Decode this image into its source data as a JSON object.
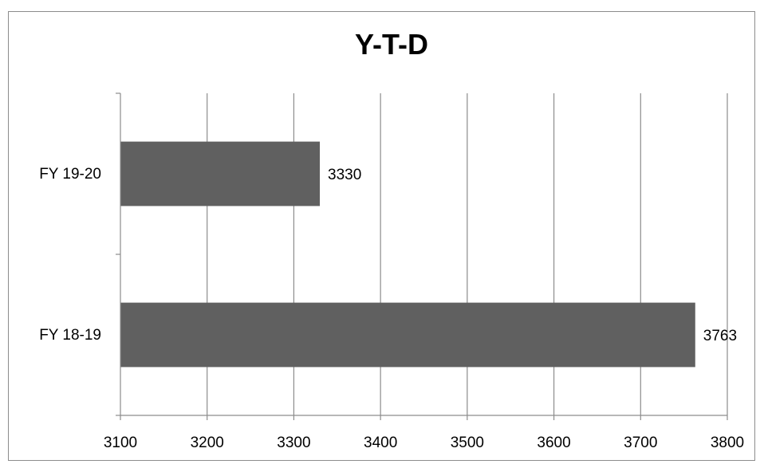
{
  "chart_data": {
    "type": "bar",
    "orientation": "horizontal",
    "title": "Y-T-D",
    "categories": [
      "FY 19-20",
      "FY  18-19"
    ],
    "values": [
      3330,
      3763
    ],
    "data_labels": [
      "3330",
      "3763"
    ],
    "xlim": [
      3100,
      3800
    ],
    "x_ticks": [
      3100,
      3200,
      3300,
      3400,
      3500,
      3600,
      3700,
      3800
    ],
    "xlabel": "",
    "ylabel": "",
    "grid": "vertical",
    "legend": "none",
    "bar_color": "#606060"
  }
}
